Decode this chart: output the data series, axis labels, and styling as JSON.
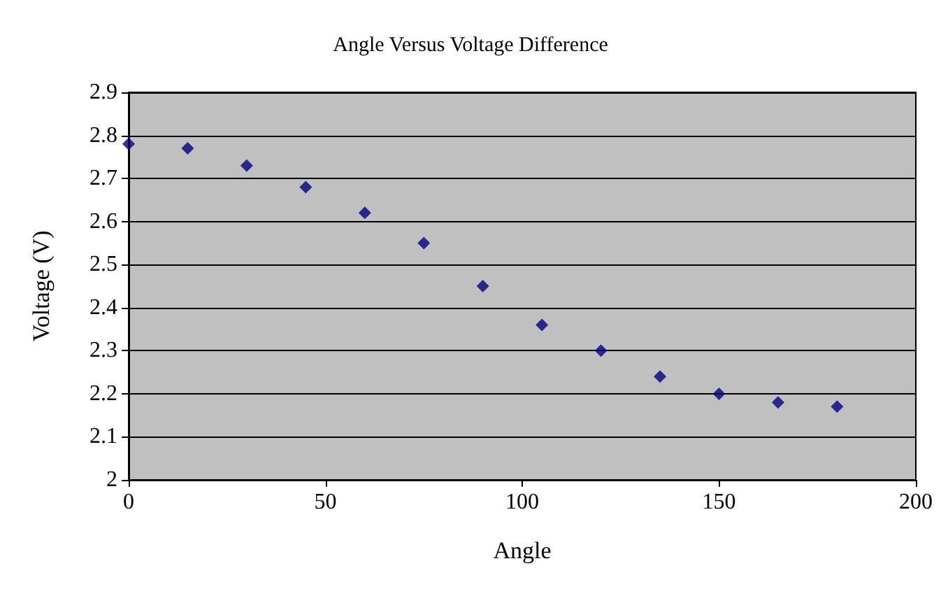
{
  "chart_data": {
    "type": "scatter",
    "title": "Angle Versus Voltage Difference",
    "xlabel": "Angle",
    "ylabel": "Voltage (V)",
    "x": [
      0,
      15,
      30,
      45,
      60,
      75,
      90,
      105,
      120,
      135,
      150,
      165,
      180
    ],
    "series": [
      {
        "color": "#000080",
        "values": [
          2.78,
          2.77,
          2.73,
          2.68,
          2.62,
          2.55,
          2.45,
          2.36,
          2.3,
          2.24,
          2.2,
          2.18,
          2.17
        ]
      }
    ],
    "xlim": [
      0,
      200
    ],
    "xticks": [
      0,
      50,
      100,
      150,
      200
    ],
    "ylim": [
      2,
      2.9
    ],
    "yticks": [
      2,
      2.1,
      2.2,
      2.3,
      2.4,
      2.5,
      2.6,
      2.7,
      2.8,
      2.9
    ],
    "grid": "y",
    "marker": "diamond"
  }
}
